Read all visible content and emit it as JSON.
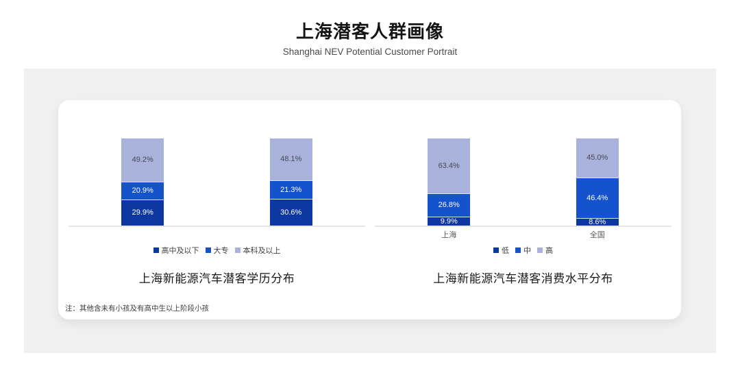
{
  "page": {
    "title": "上海潜客人群画像",
    "subtitle": "Shanghai NEV Potential Customer Portrait",
    "note": "注：其他含未有小孩及有高中生以上阶段小孩"
  },
  "colors": {
    "panel_background": "#f0f0f0",
    "card_background": "#ffffff",
    "axis_line": "#e6e6e8",
    "dark_blue": "#0d38a2",
    "medium_blue": "#1553cc",
    "light_purple": "#a9b2db"
  },
  "chart_data": [
    {
      "type": "bar",
      "stacked": true,
      "title": "上海新能源汽车潜客学历分布",
      "categories": [
        "",
        ""
      ],
      "series": [
        {
          "name": "高中及以下",
          "color": "#0d38a2",
          "label_color": "#ffffff",
          "values": [
            29.9,
            30.6
          ]
        },
        {
          "name": "大专",
          "color": "#1553cc",
          "label_color": "#ffffff",
          "values": [
            20.9,
            21.3
          ]
        },
        {
          "name": "本科及以上",
          "color": "#a9b2db",
          "label_color": "#474752",
          "values": [
            49.2,
            48.1
          ]
        }
      ],
      "value_suffix": "%",
      "ylim": [
        0,
        100
      ],
      "grid": false,
      "legend_position": "bottom"
    },
    {
      "type": "bar",
      "stacked": true,
      "title": "上海新能源汽车潜客消费水平分布",
      "categories": [
        "上海",
        "全国"
      ],
      "series": [
        {
          "name": "低",
          "color": "#0d38a2",
          "label_color": "#ffffff",
          "values": [
            9.9,
            8.6
          ]
        },
        {
          "name": "中",
          "color": "#1553cc",
          "label_color": "#ffffff",
          "values": [
            26.8,
            46.4
          ]
        },
        {
          "name": "高",
          "color": "#a9b2db",
          "label_color": "#474752",
          "values": [
            63.4,
            45.0
          ]
        }
      ],
      "value_suffix": "%",
      "ylim": [
        0,
        100
      ],
      "grid": false,
      "legend_position": "bottom"
    }
  ]
}
